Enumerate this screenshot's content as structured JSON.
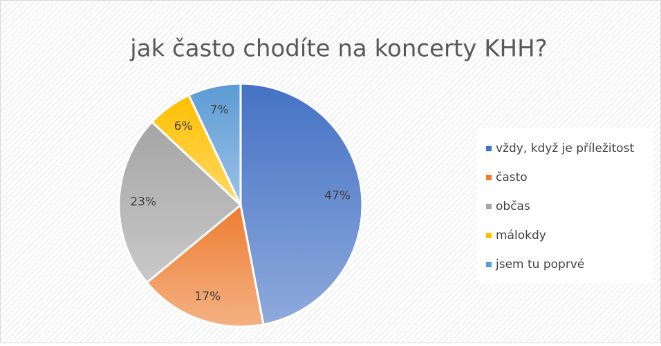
{
  "chart_data": {
    "type": "pie",
    "title": "jak často chodíte na koncerty KHH?",
    "categories": [
      "vždy, když je příležitost",
      "často",
      "občas",
      "málokdy",
      "jsem tu poprvé"
    ],
    "values": [
      47,
      17,
      23,
      6,
      7
    ],
    "value_labels": [
      "47%",
      "17%",
      "23%",
      "6%",
      "7%"
    ],
    "colors": [
      "#4472c4",
      "#ed7d31",
      "#a5a5a5",
      "#ffc000",
      "#5b9bd5"
    ],
    "legend": "right"
  }
}
